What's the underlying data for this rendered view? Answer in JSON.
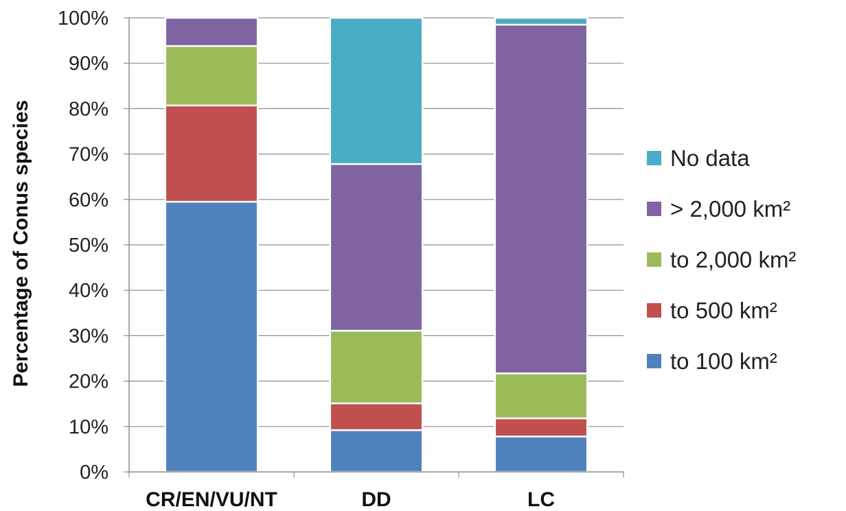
{
  "chart_data": {
    "type": "bar",
    "stacked": true,
    "percent": true,
    "categories": [
      "CR/EN/VU/NT",
      "DD",
      "LC"
    ],
    "ylabel": "Percentage of Conus species",
    "xlabel": "",
    "ylim": [
      0,
      100
    ],
    "yticks": [
      "0%",
      "10%",
      "20%",
      "30%",
      "40%",
      "50%",
      "60%",
      "70%",
      "80%",
      "90%",
      "100%"
    ],
    "grid": true,
    "legend_position": "right",
    "series": [
      {
        "name": "to 100 km²",
        "color": "#4F81BD",
        "values": [
          59.5,
          9.2,
          7.8
        ]
      },
      {
        "name": "to 500 km²",
        "color": "#C0504D",
        "values": [
          21.2,
          5.9,
          4.0
        ]
      },
      {
        "name": "to 2,000 km²",
        "color": "#9BBB59",
        "values": [
          13.1,
          16.0,
          9.9
        ]
      },
      {
        "name": "> 2,000 km²",
        "color": "#8064A2",
        "values": [
          6.2,
          36.7,
          76.8
        ]
      },
      {
        "name": "No data",
        "color": "#4BACC6",
        "values": [
          0,
          32.2,
          1.5
        ]
      }
    ]
  }
}
